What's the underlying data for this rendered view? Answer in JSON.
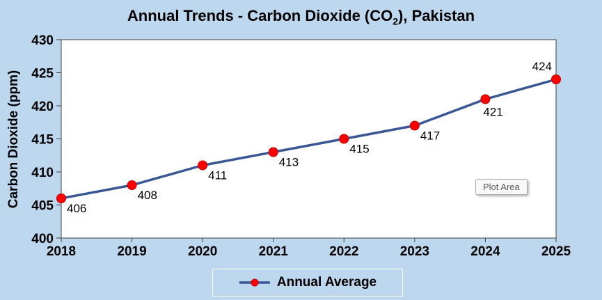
{
  "title": {
    "text": "Annual Trends - Carbon Dioxide (CO2), Pakistan",
    "part1": "Annual Trends - Carbon Dioxide (CO",
    "subscript": "2",
    "part2": "), Pakistan"
  },
  "plot_area_tooltip": "Plot Area",
  "legend": {
    "label": "Annual Average"
  },
  "colors": {
    "background": "#BDD7EE",
    "plot_background": "#FFFFFF",
    "line": "#3A5795",
    "marker_fill": "#FF0000",
    "marker_edge": "#B90000",
    "axis": "#404040",
    "text": "#000000",
    "tooltip_text": "#595959"
  },
  "chart_data": {
    "type": "line",
    "title": "Annual Trends - Carbon Dioxide (CO2), Pakistan",
    "xlabel": "",
    "ylabel": "Carbon Dioxide (ppm)",
    "categories": [
      "2018",
      "2019",
      "2020",
      "2021",
      "2022",
      "2023",
      "2024",
      "2025"
    ],
    "series": [
      {
        "name": "Annual Average",
        "values": [
          406,
          408,
          411,
          413,
          415,
          417,
          421,
          424
        ]
      }
    ],
    "data_labels": [
      "406",
      "408",
      "411",
      "413",
      "415",
      "417",
      "421",
      "424"
    ],
    "data_label_positions": [
      "below-right",
      "below-right",
      "below-right",
      "below-right",
      "below-right",
      "below-right",
      "below",
      "above-left"
    ],
    "ylim": [
      400,
      430
    ],
    "yticks": [
      400,
      405,
      410,
      415,
      420,
      425,
      430
    ],
    "grid": false,
    "legend_position": "bottom",
    "marker": "circle"
  }
}
